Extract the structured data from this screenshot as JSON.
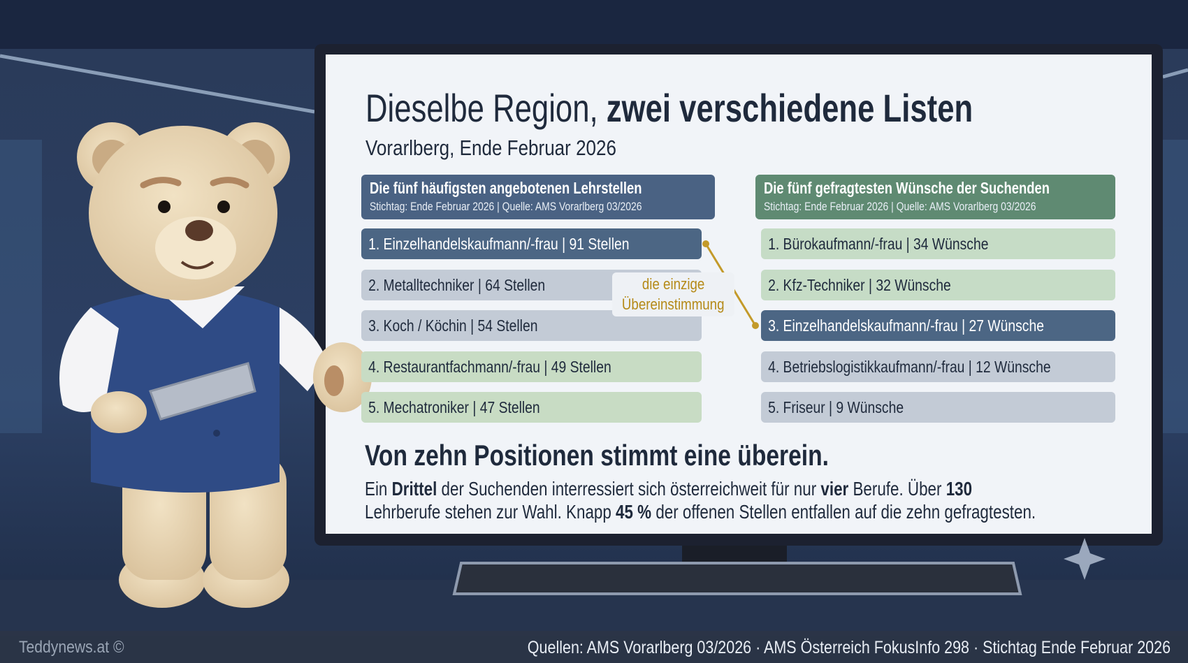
{
  "header": {
    "title": [
      {
        "text": "Dieselbe Region, ",
        "bold": false
      },
      {
        "text": "zwei verschiedene Listen",
        "bold": true
      }
    ],
    "subtitle": "Vorarlberg, Ende Februar 2026"
  },
  "left_list": {
    "title": "Die fünf häufigsten angebotenen Lehrstellen",
    "source": "Stichtag: Ende Februar 2026 | Quelle: AMS Vorarlberg 03/2026",
    "items": [
      "1. Einzelhandelskaufmann/-frau | 91 Stellen",
      "2. Metalltechniker | 64 Stellen",
      "3. Koch / Köchin | 54 Stellen",
      "4. Restaurantfachmann/-frau | 49 Stellen",
      "5. Mechatroniker | 47 Stellen"
    ]
  },
  "right_list": {
    "title": "Die fünf gefragtesten Wünsche der Suchenden",
    "source": "Stichtag: Ende Februar 2026 | Quelle: AMS Vorarlberg 03/2026",
    "items": [
      "1. Bürokaufmann/-frau | 34 Wünsche",
      "2. Kfz-Techniker | 32 Wünsche",
      "3. Einzelhandelskaufmann/-frau | 27 Wünsche",
      "4. Betriebslogistikkaufmann/-frau | 12 Wünsche",
      "5. Friseur | 9 Wünsche"
    ]
  },
  "annotation": [
    "die einzige",
    "Übereinstimmung"
  ],
  "conclusion": {
    "heading": "Von zehn Positionen stimmt eine überein.",
    "lines": [
      [
        {
          "text": "Ein ",
          "bold": false
        },
        {
          "text": "Drittel",
          "bold": true
        },
        {
          "text": " der Suchenden interressiert sich österreichweit für nur ",
          "bold": false
        },
        {
          "text": "vier",
          "bold": true
        },
        {
          "text": " Berufe. Über ",
          "bold": false
        },
        {
          "text": "130",
          "bold": true
        }
      ],
      [
        {
          "text": "Lehrberufe stehen zur Wahl. Knapp ",
          "bold": false
        },
        {
          "text": "45 %",
          "bold": true
        },
        {
          "text": " der offenen Stellen entfallen auf die zehn gefragtesten.",
          "bold": false
        }
      ]
    ]
  },
  "footer": {
    "brand": "Teddynews.at ©",
    "sources": "Quellen: AMS Vorarlberg 03/2026 · AMS Österreich FokusInfo 298 · Stichtag Ende Februar 2026"
  }
}
